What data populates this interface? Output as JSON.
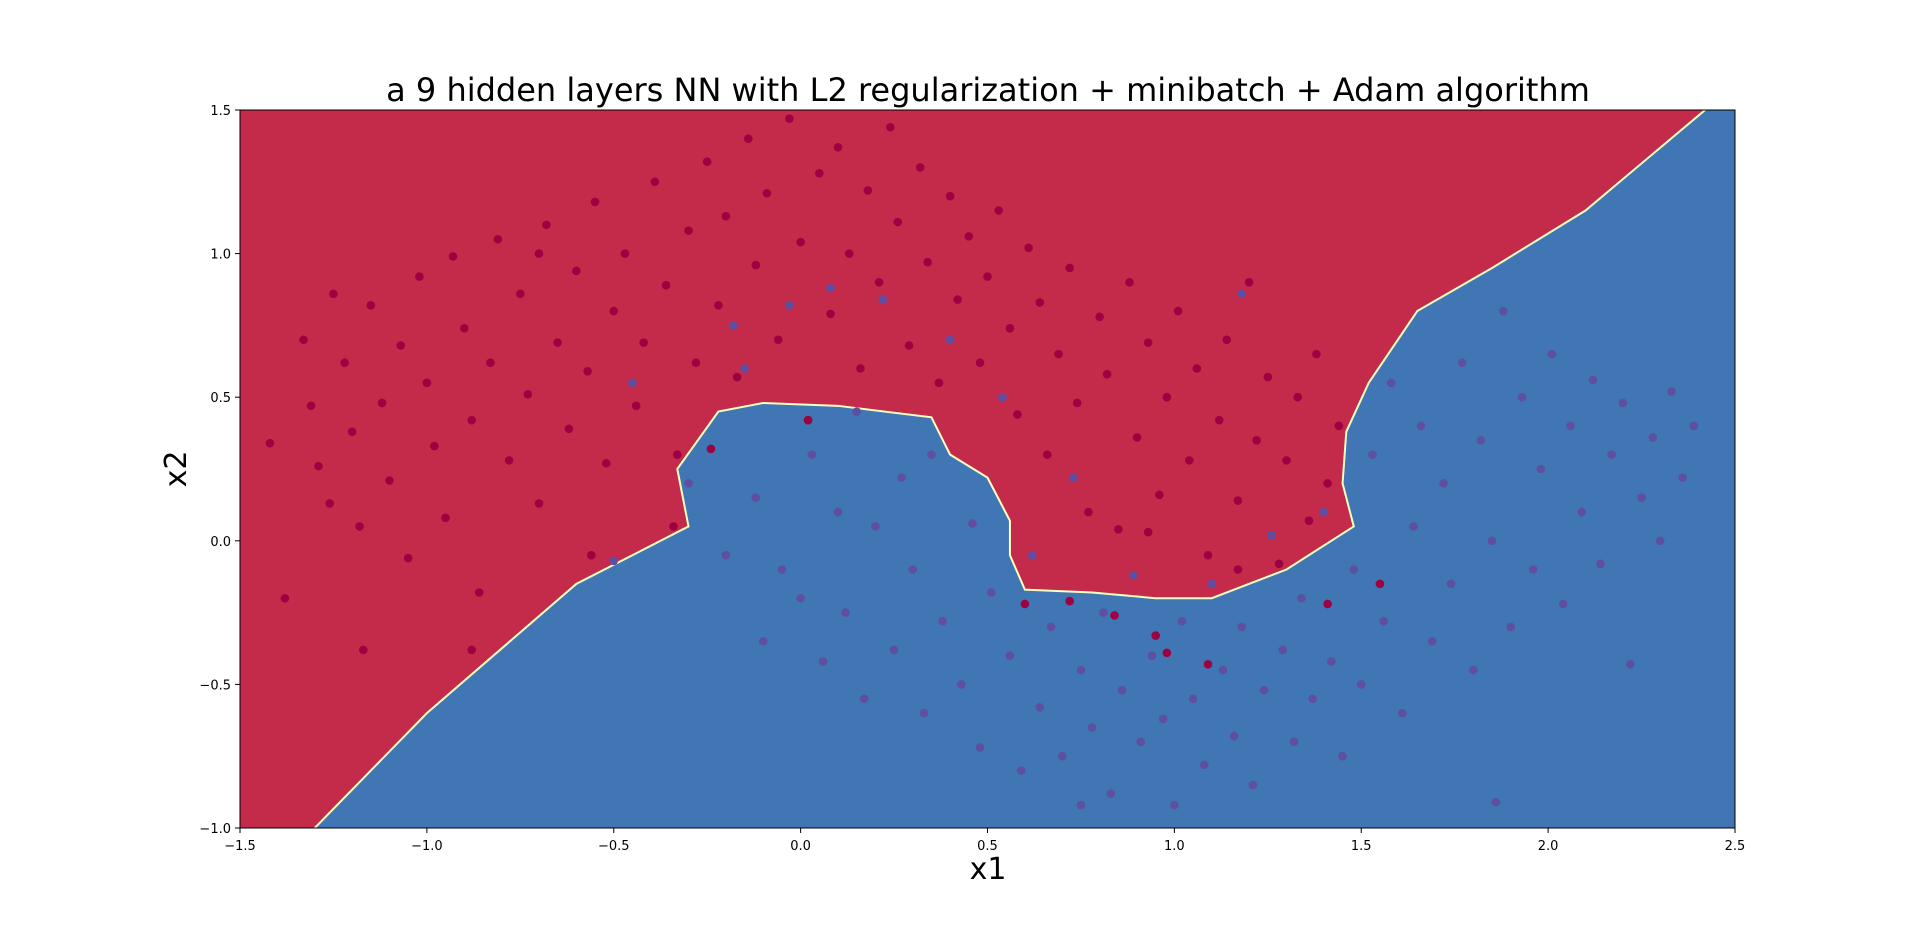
{
  "chart_data": {
    "type": "scatter",
    "title": "a 9 hidden layers NN with L2 regularization + minibatch + Adam algorithm",
    "xlabel": "x1",
    "ylabel": "x2",
    "xlim": [
      -1.5,
      2.5
    ],
    "ylim": [
      -1.0,
      1.5
    ],
    "xticks": [
      -1.5,
      -1.0,
      -0.5,
      0.0,
      0.5,
      1.0,
      1.5,
      2.0,
      2.5
    ],
    "xtick_labels": [
      "−1.5",
      "−1.0",
      "−0.5",
      "0.0",
      "0.5",
      "1.0",
      "1.5",
      "2.0",
      "2.5"
    ],
    "yticks": [
      -1.0,
      -0.5,
      0.0,
      0.5,
      1.0,
      1.5
    ],
    "ytick_labels": [
      "−1.0",
      "−0.5",
      "0.0",
      "0.5",
      "1.0",
      "1.5"
    ],
    "grid": false,
    "colors": {
      "class_0_region": "#c42b4a",
      "class_1_region": "#3f76b3",
      "boundary": "#ffffbf",
      "class_0_point": "#9e0142",
      "class_1_point": "#5e4fa2"
    },
    "decision_boundary": [
      [
        -1.3,
        -1.0
      ],
      [
        -1.0,
        -0.6
      ],
      [
        -0.6,
        -0.15
      ],
      [
        -0.3,
        0.05
      ],
      [
        -0.33,
        0.25
      ],
      [
        -0.22,
        0.45
      ],
      [
        -0.1,
        0.48
      ],
      [
        0.1,
        0.47
      ],
      [
        0.35,
        0.43
      ],
      [
        0.4,
        0.3
      ],
      [
        0.5,
        0.22
      ],
      [
        0.56,
        0.07
      ],
      [
        0.56,
        -0.05
      ],
      [
        0.6,
        -0.17
      ],
      [
        0.78,
        -0.18
      ],
      [
        0.95,
        -0.2
      ],
      [
        1.1,
        -0.2
      ],
      [
        1.3,
        -0.1
      ],
      [
        1.48,
        0.05
      ],
      [
        1.45,
        0.2
      ],
      [
        1.46,
        0.38
      ],
      [
        1.52,
        0.55
      ],
      [
        1.65,
        0.8
      ],
      [
        1.85,
        0.95
      ],
      [
        2.1,
        1.15
      ],
      [
        2.42,
        1.5
      ]
    ],
    "series": [
      {
        "class": 0,
        "points": [
          [
            -1.42,
            0.34
          ],
          [
            -1.33,
            0.7
          ],
          [
            -1.31,
            0.47
          ],
          [
            -1.29,
            0.26
          ],
          [
            -1.26,
            0.13
          ],
          [
            -1.22,
            0.62
          ],
          [
            -1.2,
            0.38
          ],
          [
            -1.18,
            0.05
          ],
          [
            -1.15,
            0.82
          ],
          [
            -1.12,
            0.48
          ],
          [
            -1.1,
            0.21
          ],
          [
            -1.07,
            0.68
          ],
          [
            -1.05,
            -0.06
          ],
          [
            -1.02,
            0.92
          ],
          [
            -1.0,
            0.55
          ],
          [
            -0.98,
            0.33
          ],
          [
            -0.95,
            0.08
          ],
          [
            -0.93,
            0.99
          ],
          [
            -0.9,
            0.74
          ],
          [
            -0.88,
            0.42
          ],
          [
            -0.86,
            -0.18
          ],
          [
            -0.83,
            0.62
          ],
          [
            -0.81,
            1.05
          ],
          [
            -0.78,
            0.28
          ],
          [
            -0.75,
            0.86
          ],
          [
            -0.73,
            0.51
          ],
          [
            -0.7,
            0.13
          ],
          [
            -0.68,
            1.1
          ],
          [
            -0.65,
            0.69
          ],
          [
            -0.62,
            0.39
          ],
          [
            -0.6,
            0.94
          ],
          [
            -0.57,
            0.59
          ],
          [
            -0.55,
            1.18
          ],
          [
            -0.52,
            0.27
          ],
          [
            -0.5,
            0.8
          ],
          [
            -0.47,
            1.0
          ],
          [
            -0.44,
            0.47
          ],
          [
            -0.42,
            0.69
          ],
          [
            -0.39,
            1.25
          ],
          [
            -0.36,
            0.89
          ],
          [
            -0.33,
            0.3
          ],
          [
            -0.3,
            1.08
          ],
          [
            -0.28,
            0.62
          ],
          [
            -0.25,
            1.32
          ],
          [
            -0.22,
            0.82
          ],
          [
            -0.2,
            1.13
          ],
          [
            -0.17,
            0.57
          ],
          [
            -0.14,
            1.4
          ],
          [
            -0.12,
            0.96
          ],
          [
            -0.09,
            1.21
          ],
          [
            -0.06,
            0.7
          ],
          [
            -0.03,
            1.47
          ],
          [
            0.0,
            1.04
          ],
          [
            0.02,
            0.42
          ],
          [
            0.05,
            1.28
          ],
          [
            0.08,
            0.79
          ],
          [
            0.1,
            1.37
          ],
          [
            0.13,
            1.0
          ],
          [
            0.16,
            0.6
          ],
          [
            0.18,
            1.22
          ],
          [
            0.21,
            0.9
          ],
          [
            0.24,
            1.44
          ],
          [
            0.26,
            1.11
          ],
          [
            0.29,
            0.68
          ],
          [
            0.32,
            1.3
          ],
          [
            0.34,
            0.97
          ],
          [
            0.37,
            0.55
          ],
          [
            0.4,
            1.2
          ],
          [
            0.42,
            0.84
          ],
          [
            0.45,
            1.06
          ],
          [
            0.48,
            0.62
          ],
          [
            0.5,
            0.92
          ],
          [
            0.53,
            1.15
          ],
          [
            0.56,
            0.74
          ],
          [
            0.58,
            0.44
          ],
          [
            0.61,
            1.02
          ],
          [
            0.64,
            0.83
          ],
          [
            0.66,
            0.3
          ],
          [
            0.69,
            0.65
          ],
          [
            0.72,
            0.95
          ],
          [
            0.74,
            0.48
          ],
          [
            0.77,
            0.1
          ],
          [
            0.8,
            0.78
          ],
          [
            0.82,
            0.58
          ],
          [
            0.85,
            0.04
          ],
          [
            0.88,
            0.9
          ],
          [
            0.9,
            0.36
          ],
          [
            0.93,
            0.69
          ],
          [
            0.96,
            0.16
          ],
          [
            0.98,
            0.5
          ],
          [
            1.01,
            0.8
          ],
          [
            1.04,
            0.28
          ],
          [
            1.06,
            0.6
          ],
          [
            1.09,
            -0.05
          ],
          [
            1.12,
            0.42
          ],
          [
            1.14,
            0.7
          ],
          [
            1.17,
            0.14
          ],
          [
            1.2,
            0.9
          ],
          [
            1.22,
            0.35
          ],
          [
            1.25,
            0.57
          ],
          [
            1.28,
            -0.08
          ],
          [
            1.3,
            0.28
          ],
          [
            1.33,
            0.5
          ],
          [
            1.36,
            0.07
          ],
          [
            1.38,
            0.65
          ],
          [
            1.41,
            0.2
          ],
          [
            1.44,
            0.4
          ],
          [
            -1.38,
            -0.2
          ],
          [
            -1.17,
            -0.38
          ],
          [
            -0.88,
            -0.38
          ],
          [
            -0.56,
            -0.05
          ],
          [
            0.93,
            0.03
          ],
          [
            1.17,
            -0.1
          ],
          [
            -1.25,
            0.86
          ],
          [
            -0.7,
            1.0
          ],
          [
            0.02,
            0.42
          ],
          [
            -0.24,
            0.32
          ],
          [
            -0.34,
            0.05
          ],
          [
            0.6,
            -0.22
          ],
          [
            0.72,
            -0.21
          ],
          [
            0.84,
            -0.26
          ],
          [
            0.95,
            -0.33
          ],
          [
            0.98,
            -0.39
          ],
          [
            1.09,
            -0.43
          ],
          [
            1.41,
            -0.22
          ],
          [
            1.55,
            -0.15
          ]
        ]
      },
      {
        "class": 1,
        "points": [
          [
            -0.5,
            -0.07
          ],
          [
            -0.45,
            0.55
          ],
          [
            -0.3,
            0.2
          ],
          [
            -0.2,
            -0.05
          ],
          [
            -0.18,
            0.75
          ],
          [
            -0.15,
            0.6
          ],
          [
            -0.12,
            0.15
          ],
          [
            -0.1,
            -0.35
          ],
          [
            -0.05,
            -0.1
          ],
          [
            -0.03,
            0.82
          ],
          [
            0.0,
            -0.2
          ],
          [
            0.03,
            0.3
          ],
          [
            0.06,
            -0.42
          ],
          [
            0.08,
            0.88
          ],
          [
            0.1,
            0.1
          ],
          [
            0.12,
            -0.25
          ],
          [
            0.15,
            0.45
          ],
          [
            0.17,
            -0.55
          ],
          [
            0.2,
            0.05
          ],
          [
            0.22,
            0.84
          ],
          [
            0.25,
            -0.38
          ],
          [
            0.27,
            0.22
          ],
          [
            0.3,
            -0.1
          ],
          [
            0.33,
            -0.6
          ],
          [
            0.35,
            0.3
          ],
          [
            0.38,
            -0.28
          ],
          [
            0.4,
            0.7
          ],
          [
            0.43,
            -0.5
          ],
          [
            0.46,
            0.06
          ],
          [
            0.48,
            -0.72
          ],
          [
            0.51,
            -0.18
          ],
          [
            0.54,
            0.5
          ],
          [
            0.56,
            -0.4
          ],
          [
            0.59,
            -0.8
          ],
          [
            0.62,
            -0.05
          ],
          [
            0.64,
            -0.58
          ],
          [
            0.67,
            -0.3
          ],
          [
            0.7,
            -0.75
          ],
          [
            0.73,
            0.22
          ],
          [
            0.75,
            -0.45
          ],
          [
            0.78,
            -0.65
          ],
          [
            0.81,
            -0.25
          ],
          [
            0.83,
            -0.88
          ],
          [
            0.86,
            -0.52
          ],
          [
            0.89,
            -0.12
          ],
          [
            0.91,
            -0.7
          ],
          [
            0.94,
            -0.4
          ],
          [
            0.97,
            -0.62
          ],
          [
            1.0,
            -0.92
          ],
          [
            1.02,
            -0.28
          ],
          [
            1.05,
            -0.55
          ],
          [
            1.08,
            -0.78
          ],
          [
            1.1,
            -0.15
          ],
          [
            1.13,
            -0.45
          ],
          [
            1.16,
            -0.68
          ],
          [
            1.18,
            -0.3
          ],
          [
            1.21,
            -0.85
          ],
          [
            1.24,
            -0.52
          ],
          [
            1.26,
            0.02
          ],
          [
            1.29,
            -0.38
          ],
          [
            1.32,
            -0.7
          ],
          [
            1.34,
            -0.2
          ],
          [
            1.37,
            -0.55
          ],
          [
            1.4,
            0.1
          ],
          [
            1.42,
            -0.42
          ],
          [
            1.45,
            -0.75
          ],
          [
            1.48,
            -0.1
          ],
          [
            1.5,
            -0.5
          ],
          [
            1.53,
            0.3
          ],
          [
            1.56,
            -0.28
          ],
          [
            1.58,
            0.55
          ],
          [
            1.61,
            -0.6
          ],
          [
            1.64,
            0.05
          ],
          [
            1.66,
            0.4
          ],
          [
            1.69,
            -0.35
          ],
          [
            1.72,
            0.2
          ],
          [
            1.74,
            -0.15
          ],
          [
            1.77,
            0.62
          ],
          [
            1.8,
            -0.45
          ],
          [
            1.82,
            0.35
          ],
          [
            1.85,
            0.0
          ],
          [
            1.88,
            0.8
          ],
          [
            1.9,
            -0.3
          ],
          [
            1.93,
            0.5
          ],
          [
            1.96,
            -0.1
          ],
          [
            1.98,
            0.25
          ],
          [
            2.01,
            0.65
          ],
          [
            2.04,
            -0.22
          ],
          [
            2.06,
            0.4
          ],
          [
            2.09,
            0.1
          ],
          [
            2.12,
            0.56
          ],
          [
            2.14,
            -0.08
          ],
          [
            2.17,
            0.3
          ],
          [
            2.2,
            0.48
          ],
          [
            2.22,
            -0.43
          ],
          [
            2.25,
            0.15
          ],
          [
            2.28,
            0.36
          ],
          [
            2.3,
            0.0
          ],
          [
            2.33,
            0.52
          ],
          [
            2.36,
            0.22
          ],
          [
            2.39,
            0.4
          ],
          [
            1.86,
            -0.91
          ],
          [
            1.18,
            0.86
          ],
          [
            0.75,
            -0.92
          ]
        ]
      }
    ]
  }
}
